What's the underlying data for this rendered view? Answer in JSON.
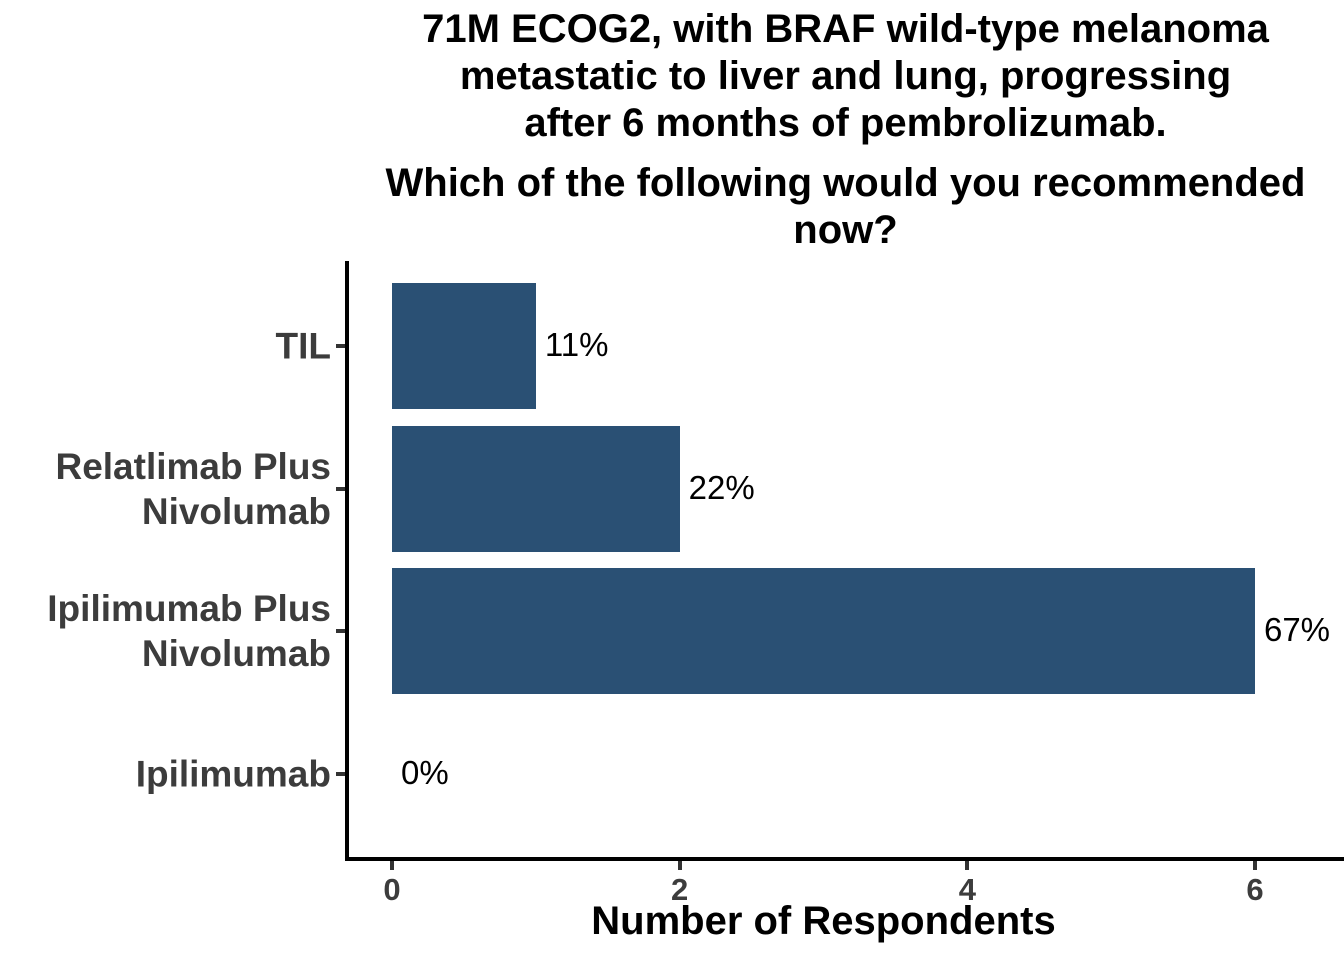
{
  "chart_data": {
    "type": "bar",
    "orientation": "horizontal",
    "title": "71M ECOG2, with BRAF wild-type melanoma\nmetastatic to liver and lung, progressing\nafter 6 months of pembrolizumab.",
    "subtitle": "Which of the following would you recommended\nnow?",
    "xlabel": "Number of Respondents",
    "ylabel": "",
    "categories": [
      "TIL",
      "Relatlimab Plus\nNivolumab",
      "Ipilimumab Plus\nNivolumab",
      "Ipilimumab"
    ],
    "values": [
      1,
      2,
      6,
      0
    ],
    "value_labels": [
      "11%",
      "22%",
      "67%",
      "0%"
    ],
    "x_ticks": [
      "0",
      "2",
      "4",
      "6"
    ],
    "xlim": [
      0,
      6
    ],
    "grid": false,
    "legend_position": "none",
    "bar_color": "#2A5074",
    "axis_line_color": "#000000",
    "tick_mark_color": "#333333",
    "axis_text_color": "#3C3C3C",
    "value_label_color": "#000000",
    "background_color": "#FFFFFF"
  }
}
